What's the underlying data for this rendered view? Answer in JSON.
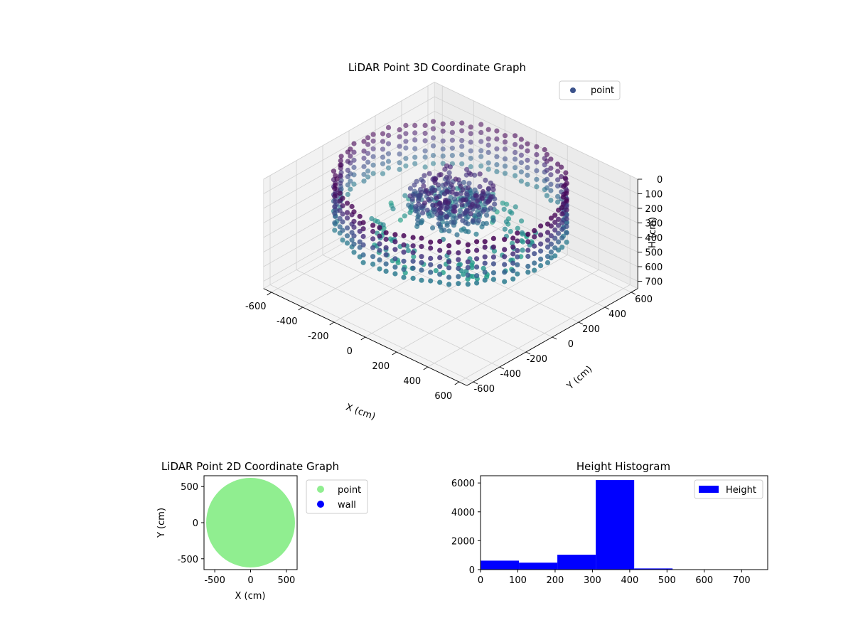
{
  "chart_data": [
    {
      "type": "scatter",
      "title": "LiDAR Point 3D Coordinate Graph",
      "xlabel": "X (cm)",
      "ylabel": "Y (cm)",
      "zlabel": "H (cm)",
      "xlim": [
        -650,
        650
      ],
      "ylim": [
        -650,
        650
      ],
      "zlim": [
        750,
        0
      ],
      "x_ticks": [
        -600,
        -400,
        -200,
        0,
        200,
        400,
        600
      ],
      "y_ticks": [
        -600,
        -400,
        -200,
        0,
        200,
        400,
        600
      ],
      "z_ticks": [
        0,
        100,
        200,
        300,
        400,
        500,
        600,
        700
      ],
      "legend": {
        "placement": "top-right",
        "entries": [
          {
            "label": "point",
            "color": "#3b528b"
          }
        ]
      },
      "colormap": "viridis",
      "grid": true,
      "point_cloud": {
        "outer_ring": {
          "radius_cm": 570,
          "h_range_cm": [
            0,
            320
          ]
        },
        "inner_ring": {
          "radius_cm": 330,
          "h_range_cm": [
            330,
            410
          ]
        },
        "central_mass": {
          "radius_cm": 220,
          "h_range_cm": [
            100,
            320
          ]
        }
      }
    },
    {
      "type": "scatter",
      "title": "LiDAR Point 2D Coordinate Graph",
      "xlabel": "X (cm)",
      "ylabel": "Y (cm)",
      "xlim": [
        -650,
        650
      ],
      "ylim": [
        -650,
        650
      ],
      "x_ticks": [
        -500,
        0,
        500
      ],
      "y_ticks": [
        -500,
        0,
        500
      ],
      "grid": false,
      "legend": {
        "placement": "outside-right",
        "entries": [
          {
            "label": "point",
            "color": "#90ee90"
          },
          {
            "label": "wall",
            "color": "#0000ff"
          }
        ]
      },
      "series": [
        {
          "name": "point",
          "color": "#90ee90",
          "shape": "filled disc",
          "center": [
            0,
            0
          ],
          "radius": 620
        },
        {
          "name": "wall",
          "color": "#0000ff",
          "points": []
        }
      ]
    },
    {
      "type": "bar",
      "title": "Height Histogram",
      "xlabel": "",
      "ylabel": "",
      "xlim": [
        0,
        770
      ],
      "ylim": [
        0,
        6500
      ],
      "x_ticks": [
        0,
        100,
        200,
        300,
        400,
        500,
        600,
        700
      ],
      "y_ticks": [
        0,
        2000,
        4000,
        6000
      ],
      "grid": false,
      "legend": {
        "placement": "top-right",
        "entries": [
          {
            "label": "Height",
            "color": "#0000ff"
          }
        ]
      },
      "bin_edges": [
        0,
        103,
        206,
        309,
        412,
        515,
        618,
        721
      ],
      "values": [
        620,
        480,
        1030,
        6200,
        80,
        10,
        5
      ],
      "series": [
        {
          "name": "Height",
          "color": "#0000ff"
        }
      ]
    }
  ]
}
